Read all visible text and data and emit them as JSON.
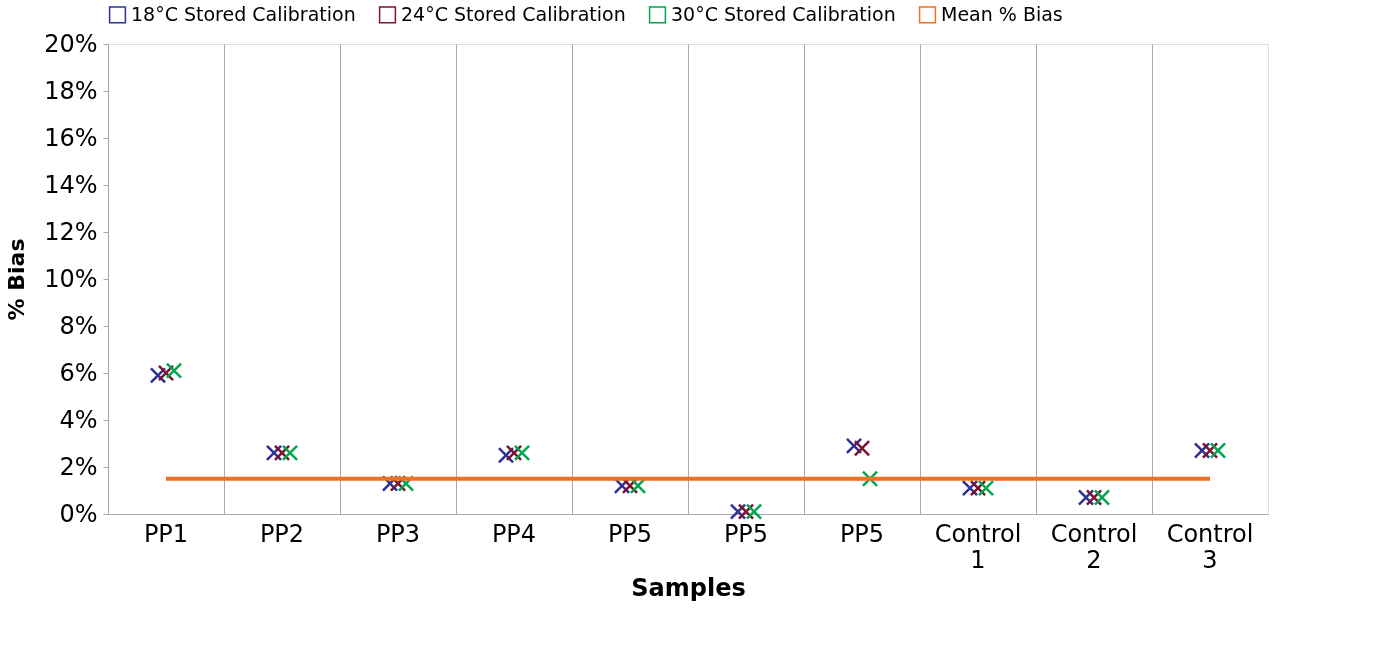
{
  "chart_data": {
    "type": "scatter",
    "xlabel": "Samples",
    "ylabel": "% Bias",
    "categories": [
      "PP1",
      "PP2",
      "PP3",
      "PP4",
      "PP5",
      "PP5",
      "PP5",
      "Control 1",
      "Control 2",
      "Control 3"
    ],
    "series": [
      {
        "name": "18°C Stored Calibration",
        "color": "#2e3192",
        "values": [
          5.9,
          2.6,
          1.3,
          2.5,
          1.2,
          0.1,
          2.9,
          1.1,
          0.7,
          2.7
        ]
      },
      {
        "name": "24°C Stored Calibration",
        "color": "#7b1430",
        "values": [
          6.0,
          2.6,
          1.3,
          2.6,
          1.2,
          0.1,
          2.8,
          1.1,
          0.7,
          2.7
        ]
      },
      {
        "name": "30°C Stored Calibration",
        "color": "#00a650",
        "values": [
          6.1,
          2.6,
          1.3,
          2.6,
          1.2,
          0.1,
          1.5,
          1.1,
          0.7,
          2.7
        ]
      },
      {
        "name": "Mean % Bias",
        "color": "#f07022",
        "type": "line",
        "marker": "none",
        "values": [
          1.5,
          1.5,
          1.5,
          1.5,
          1.5,
          1.5,
          1.5,
          1.5,
          1.5,
          1.5
        ]
      }
    ],
    "ylim": [
      0,
      20
    ],
    "yticks": [
      {
        "value": 0,
        "label": "0%"
      },
      {
        "value": 2,
        "label": "2%"
      },
      {
        "value": 4,
        "label": "4%"
      },
      {
        "value": 6,
        "label": "6%"
      },
      {
        "value": 8,
        "label": "8%"
      },
      {
        "value": 10,
        "label": "10%"
      },
      {
        "value": 12,
        "label": "12%"
      },
      {
        "value": 14,
        "label": "14%"
      },
      {
        "value": 16,
        "label": "16%"
      },
      {
        "value": 18,
        "label": "18%"
      },
      {
        "value": 20,
        "label": "20%"
      }
    ],
    "grid": "x",
    "legend": "top",
    "marker": "cross"
  }
}
